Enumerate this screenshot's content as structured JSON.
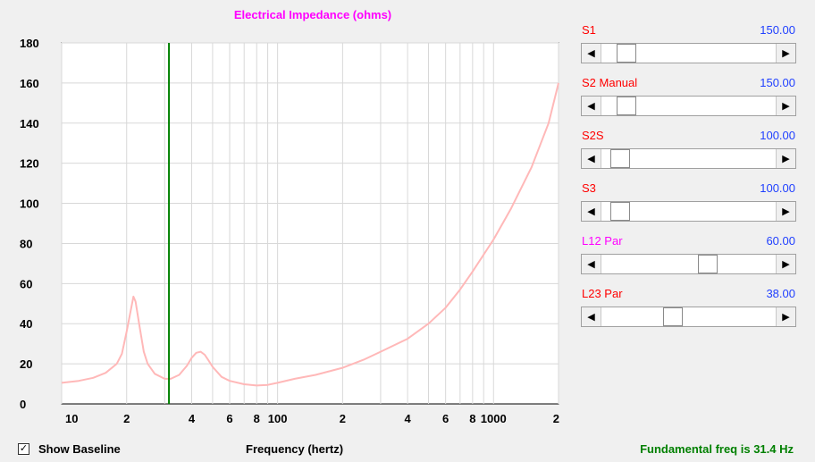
{
  "chart_data": {
    "type": "line",
    "title": "Electrical Impedance (ohms)",
    "xlabel": "Frequency (hertz)",
    "ylabel": "",
    "x_scale": "log",
    "xlim": [
      10,
      2000
    ],
    "ylim": [
      0,
      180
    ],
    "yticks": [
      "0",
      "20",
      "40",
      "60",
      "80",
      "100",
      "120",
      "140",
      "160",
      "180"
    ],
    "xtick_labels": [
      {
        "f": 10,
        "label": "10"
      },
      {
        "f": 20,
        "label": "2"
      },
      {
        "f": 40,
        "label": "4"
      },
      {
        "f": 60,
        "label": "6"
      },
      {
        "f": 80,
        "label": "8"
      },
      {
        "f": 100,
        "label": "100"
      },
      {
        "f": 200,
        "label": "2"
      },
      {
        "f": 400,
        "label": "4"
      },
      {
        "f": 600,
        "label": "6"
      },
      {
        "f": 800,
        "label": "8"
      },
      {
        "f": 1000,
        "label": "1000"
      },
      {
        "f": 2000,
        "label": "2"
      }
    ],
    "grid": true,
    "marker_freq": 31.4,
    "series": [
      {
        "color": "#ffb8b8",
        "x": [
          10,
          12,
          14,
          16,
          18,
          19,
          20,
          21,
          21.5,
          22,
          23,
          24,
          25,
          27,
          30,
          32,
          35,
          38,
          40,
          42,
          44,
          46,
          48,
          50,
          55,
          60,
          70,
          80,
          90,
          100,
          120,
          150,
          200,
          250,
          300,
          400,
          500,
          600,
          700,
          800,
          1000,
          1200,
          1500,
          1800,
          2000
        ],
        "values": [
          10.5,
          11.5,
          13,
          15.5,
          20,
          25,
          36,
          48,
          53.5,
          51,
          38,
          26,
          20,
          15,
          12.5,
          12.5,
          14.5,
          19,
          23,
          25.5,
          26,
          24.5,
          21.5,
          18.5,
          13.5,
          11.5,
          9.8,
          9.2,
          9.5,
          10.5,
          12.5,
          14.5,
          18,
          22,
          26,
          32.5,
          40,
          48,
          57,
          66,
          82,
          97,
          118,
          140,
          160
        ]
      }
    ]
  },
  "sliders": [
    {
      "label": "S1",
      "value": "150.00",
      "label_color": "#ff0000",
      "position": 0.1
    },
    {
      "label": "S2  Manual",
      "value": "150.00",
      "label_color": "#ff0000",
      "position": 0.1
    },
    {
      "label": "S2S",
      "value": "100.00",
      "label_color": "#ff0000",
      "position": 0.06
    },
    {
      "label": "S3",
      "value": "100.00",
      "label_color": "#ff0000",
      "position": 0.06
    },
    {
      "label": "L12  Par",
      "value": "60.00",
      "label_color": "#ff00ff",
      "position": 0.62
    },
    {
      "label": "L23  Par",
      "value": "38.00",
      "label_color": "#ff0000",
      "position": 0.4
    }
  ],
  "controls": {
    "show_baseline_label": "Show Baseline",
    "show_baseline_checked": "✓",
    "left_arrow": "◀",
    "right_arrow": "▶"
  },
  "status": {
    "text": "Fundamental freq is 31.4 Hz"
  }
}
